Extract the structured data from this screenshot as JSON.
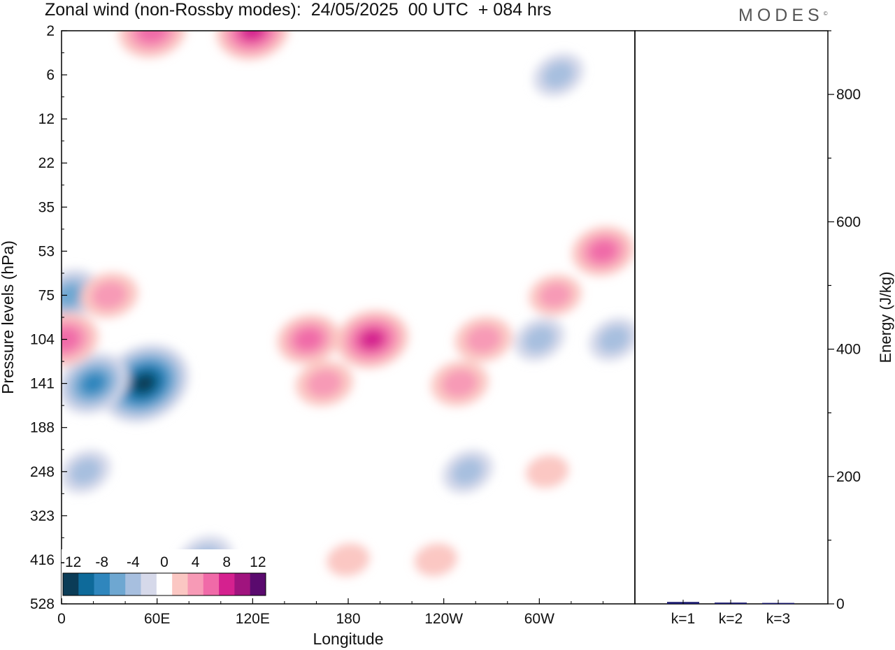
{
  "title": "Zonal wind (non-Rossby modes):  24/05/2025  00 UTC  + 084 hrs",
  "logo": "MODES",
  "colors": {
    "neg6": "#0b3c57",
    "neg5": "#0e6a9a",
    "neg4": "#2f86bd",
    "neg3": "#6ea7d1",
    "neg2": "#a7bfdf",
    "neg1": "#d6d9ea",
    "zero": "#ffffff",
    "pos1": "#fbc7c3",
    "pos2": "#f79ab6",
    "pos3": "#f06aa8",
    "pos4": "#d5218f",
    "pos5": "#a0147e",
    "pos6": "#5a0a6e",
    "bar": "#1a1a6e"
  },
  "chart_data": [
    {
      "type": "heatmap",
      "xlabel": "Longitude",
      "ylabel": "Pressure levels (hPa)",
      "x_ticks": [
        "0",
        "60E",
        "120E",
        "180",
        "120W",
        "60W"
      ],
      "x_range": [
        0,
        360
      ],
      "y_ticks": [
        "2",
        "6",
        "12",
        "22",
        "35",
        "53",
        "75",
        "104",
        "141",
        "188",
        "248",
        "323",
        "416",
        "528"
      ],
      "colorbar": {
        "labels": [
          "-12",
          "-8",
          "-4",
          "0",
          "4",
          "8",
          "12"
        ],
        "levels": [
          -14,
          -12,
          -10,
          -8,
          -6,
          -4,
          -2,
          2,
          4,
          6,
          8,
          10,
          12,
          14
        ]
      },
      "features": [
        {
          "lon": 52,
          "level": "141",
          "value": -13
        },
        {
          "lon": 20,
          "level": "141",
          "value": -9
        },
        {
          "lon": 5,
          "level": "75",
          "value": -7
        },
        {
          "lon": 15,
          "level": "248",
          "value": -5
        },
        {
          "lon": 90,
          "level": "416",
          "value": -6
        },
        {
          "lon": 347,
          "level": "104",
          "value": -5
        },
        {
          "lon": 300,
          "level": "104",
          "value": -5
        },
        {
          "lon": 255,
          "level": "248",
          "value": -5
        },
        {
          "lon": 312,
          "level": "6",
          "value": -5
        },
        {
          "lon": 195,
          "level": "104",
          "value": 9
        },
        {
          "lon": 155,
          "level": "104",
          "value": 7
        },
        {
          "lon": 165,
          "level": "141",
          "value": 6
        },
        {
          "lon": 250,
          "level": "141",
          "value": 6
        },
        {
          "lon": 30,
          "level": "75",
          "value": 6
        },
        {
          "lon": 120,
          "level": "2",
          "value": 9
        },
        {
          "lon": 57,
          "level": "2",
          "value": 8
        },
        {
          "lon": 340,
          "level": "53",
          "value": 7
        },
        {
          "lon": 2,
          "level": "104",
          "value": 8
        },
        {
          "lon": 265,
          "level": "104",
          "value": 6
        },
        {
          "lon": 310,
          "level": "75",
          "value": 5
        },
        {
          "lon": 235,
          "level": "416",
          "value": 3
        },
        {
          "lon": 180,
          "level": "416",
          "value": 3
        },
        {
          "lon": 305,
          "level": "248",
          "value": 3
        }
      ]
    },
    {
      "type": "bar",
      "categories": [
        "k=1",
        "k=2",
        "k=3"
      ],
      "values": [
        3,
        2,
        1.5
      ],
      "ylabel": "Energy (J/kg)",
      "ylim": [
        0,
        900
      ],
      "y_ticks": [
        0,
        200,
        400,
        600,
        800
      ]
    }
  ]
}
